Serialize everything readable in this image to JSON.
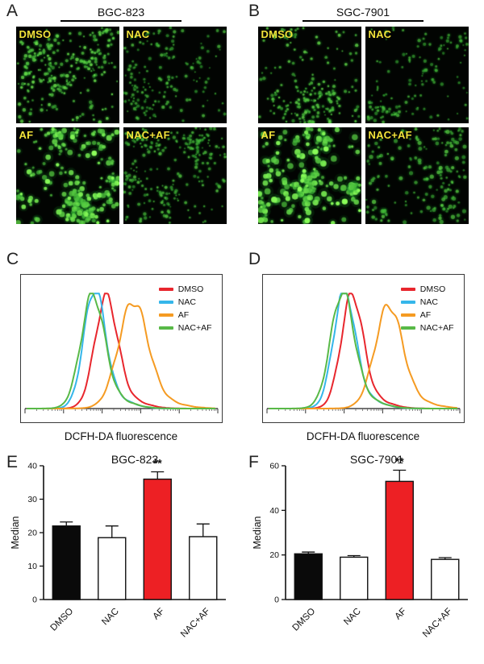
{
  "panels": {
    "A": {
      "letter": "A",
      "title": "BGC-823",
      "tiles": [
        {
          "label": "DMSO",
          "cells": 300,
          "radius": 1.6,
          "brightness": 0.75
        },
        {
          "label": "NAC",
          "cells": 170,
          "radius": 1.5,
          "brightness": 0.55
        },
        {
          "label": "AF",
          "cells": 230,
          "radius": 2.4,
          "brightness": 1.0
        },
        {
          "label": "NAC+AF",
          "cells": 260,
          "radius": 1.5,
          "brightness": 0.6
        }
      ]
    },
    "B": {
      "letter": "B",
      "title": "SGC-7901",
      "tiles": [
        {
          "label": "DMSO",
          "cells": 230,
          "radius": 1.5,
          "brightness": 0.7
        },
        {
          "label": "NAC",
          "cells": 150,
          "radius": 1.5,
          "brightness": 0.55
        },
        {
          "label": "AF",
          "cells": 210,
          "radius": 2.6,
          "brightness": 1.0
        },
        {
          "label": "NAC+AF",
          "cells": 190,
          "radius": 1.8,
          "brightness": 0.6
        }
      ]
    },
    "C": {
      "letter": "C",
      "xlabel": "DCFH-DA fluorescence"
    },
    "D": {
      "letter": "D",
      "xlabel": "DCFH-DA fluorescence"
    },
    "E": {
      "letter": "E"
    },
    "F": {
      "letter": "F"
    }
  },
  "colors": {
    "dmso": "#e8262d",
    "nac": "#35b6ea",
    "af": "#f59b22",
    "nac_af": "#58b947",
    "bar_black": "#0a0a0a",
    "bar_white": "#ffffff",
    "bar_red": "#ed2024",
    "micro_label_yellow": "#f2e23a"
  },
  "chart_data": [
    {
      "type": "line",
      "subtype": "flow_cytometry_histogram",
      "panel": "C",
      "xlabel": "DCFH-DA fluorescence",
      "x_scale": "log, arbitrary units",
      "legend": [
        "DMSO",
        "NAC",
        "AF",
        "NAC+AF"
      ],
      "legend_position": "top-right",
      "series": [
        {
          "name": "DMSO",
          "color": "#e8262d",
          "peak": 0.42,
          "sigma": 0.058,
          "height": 0.93
        },
        {
          "name": "NAC",
          "color": "#35b6ea",
          "peak": 0.36,
          "sigma": 0.055,
          "height": 1.0
        },
        {
          "name": "AF",
          "color": "#f59b22",
          "peak": 0.56,
          "sigma": 0.075,
          "height": 0.88
        },
        {
          "name": "NAC+AF",
          "color": "#58b947",
          "peak": 0.35,
          "sigma": 0.06,
          "height": 0.95
        }
      ]
    },
    {
      "type": "line",
      "subtype": "flow_cytometry_histogram",
      "panel": "D",
      "xlabel": "DCFH-DA fluorescence",
      "x_scale": "log, arbitrary units",
      "legend": [
        "DMSO",
        "NAC",
        "AF",
        "NAC+AF"
      ],
      "legend_position": "top-right",
      "series": [
        {
          "name": "DMSO",
          "color": "#e8262d",
          "peak": 0.44,
          "sigma": 0.056,
          "height": 0.95
        },
        {
          "name": "NAC",
          "color": "#35b6ea",
          "peak": 0.4,
          "sigma": 0.055,
          "height": 1.0
        },
        {
          "name": "AF",
          "color": "#f59b22",
          "peak": 0.63,
          "sigma": 0.07,
          "height": 0.85
        },
        {
          "name": "NAC+AF",
          "color": "#58b947",
          "peak": 0.39,
          "sigma": 0.06,
          "height": 0.97
        }
      ]
    },
    {
      "type": "bar",
      "panel": "E",
      "title": "BGC-823",
      "ylabel": "Median",
      "categories": [
        "DMSO",
        "NAC",
        "AF",
        "NAC+AF"
      ],
      "values": [
        22,
        18.5,
        36,
        18.8
      ],
      "errors": [
        1.2,
        3.5,
        2.2,
        3.8
      ],
      "bar_colors": [
        "#0a0a0a",
        "#ffffff",
        "#ed2024",
        "#ffffff"
      ],
      "ylim": [
        0,
        40
      ],
      "yticks": [
        0,
        10,
        20,
        30,
        40
      ],
      "significance": {
        "index": 2,
        "label": "**"
      }
    },
    {
      "type": "bar",
      "panel": "F",
      "title": "SGC-7901",
      "ylabel": "Median",
      "categories": [
        "DMSO",
        "NAC",
        "AF",
        "NAC+AF"
      ],
      "values": [
        20.5,
        19,
        53,
        18
      ],
      "errors": [
        0.8,
        0.7,
        5,
        0.8
      ],
      "bar_colors": [
        "#0a0a0a",
        "#ffffff",
        "#ed2024",
        "#ffffff"
      ],
      "ylim": [
        0,
        60
      ],
      "yticks": [
        0,
        20,
        40,
        60
      ],
      "significance": {
        "index": 2,
        "label": "**"
      }
    }
  ]
}
